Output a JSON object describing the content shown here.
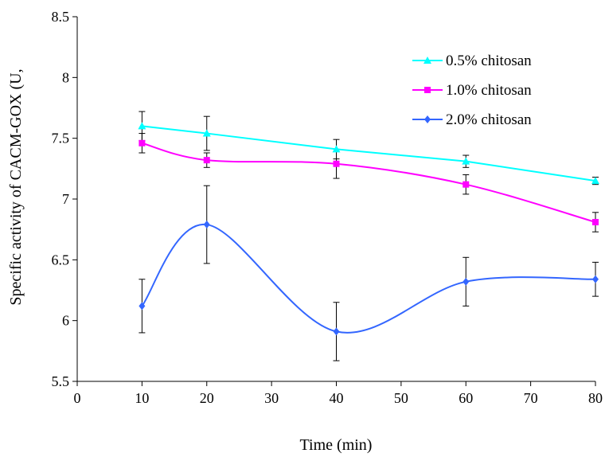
{
  "chart_data": {
    "type": "line",
    "title": "",
    "xlabel": "Time (min)",
    "ylabel": "Specific activity of CACM-GOX (U,",
    "xlim": [
      0,
      80
    ],
    "ylim": [
      5.5,
      8.5
    ],
    "xticks": [
      0,
      10,
      20,
      30,
      40,
      50,
      60,
      70,
      80
    ],
    "yticks": [
      5.5,
      6,
      6.5,
      7,
      7.5,
      8,
      8.5
    ],
    "xtick_labels": [
      "0",
      "10",
      "20",
      "30",
      "40",
      "50",
      "60",
      "70",
      "80"
    ],
    "ytick_labels": [
      "5.5",
      "6",
      "6.5",
      "7",
      "7.5",
      "8",
      "8.5"
    ],
    "grid": false,
    "legend_position": "top-right",
    "x": [
      10,
      20,
      40,
      60,
      80
    ],
    "series": [
      {
        "name": "0.5% chitosan",
        "color": "#00ffff",
        "marker": "triangle",
        "smooth": false,
        "values": [
          7.6,
          7.54,
          7.41,
          7.31,
          7.15
        ],
        "errors": [
          0.12,
          0.14,
          0.08,
          0.05,
          0.03
        ]
      },
      {
        "name": "1.0% chitosan",
        "color": "#ff00ff",
        "marker": "square",
        "smooth": true,
        "values": [
          7.46,
          7.32,
          7.29,
          7.12,
          6.81
        ],
        "errors": [
          0.08,
          0.06,
          0.12,
          0.08,
          0.08
        ]
      },
      {
        "name": "2.0% chitosan",
        "color": "#3366ff",
        "marker": "diamond",
        "smooth": true,
        "values": [
          6.12,
          6.79,
          5.91,
          6.32,
          6.34
        ],
        "errors": [
          0.22,
          0.32,
          0.24,
          0.2,
          0.14
        ]
      }
    ]
  }
}
